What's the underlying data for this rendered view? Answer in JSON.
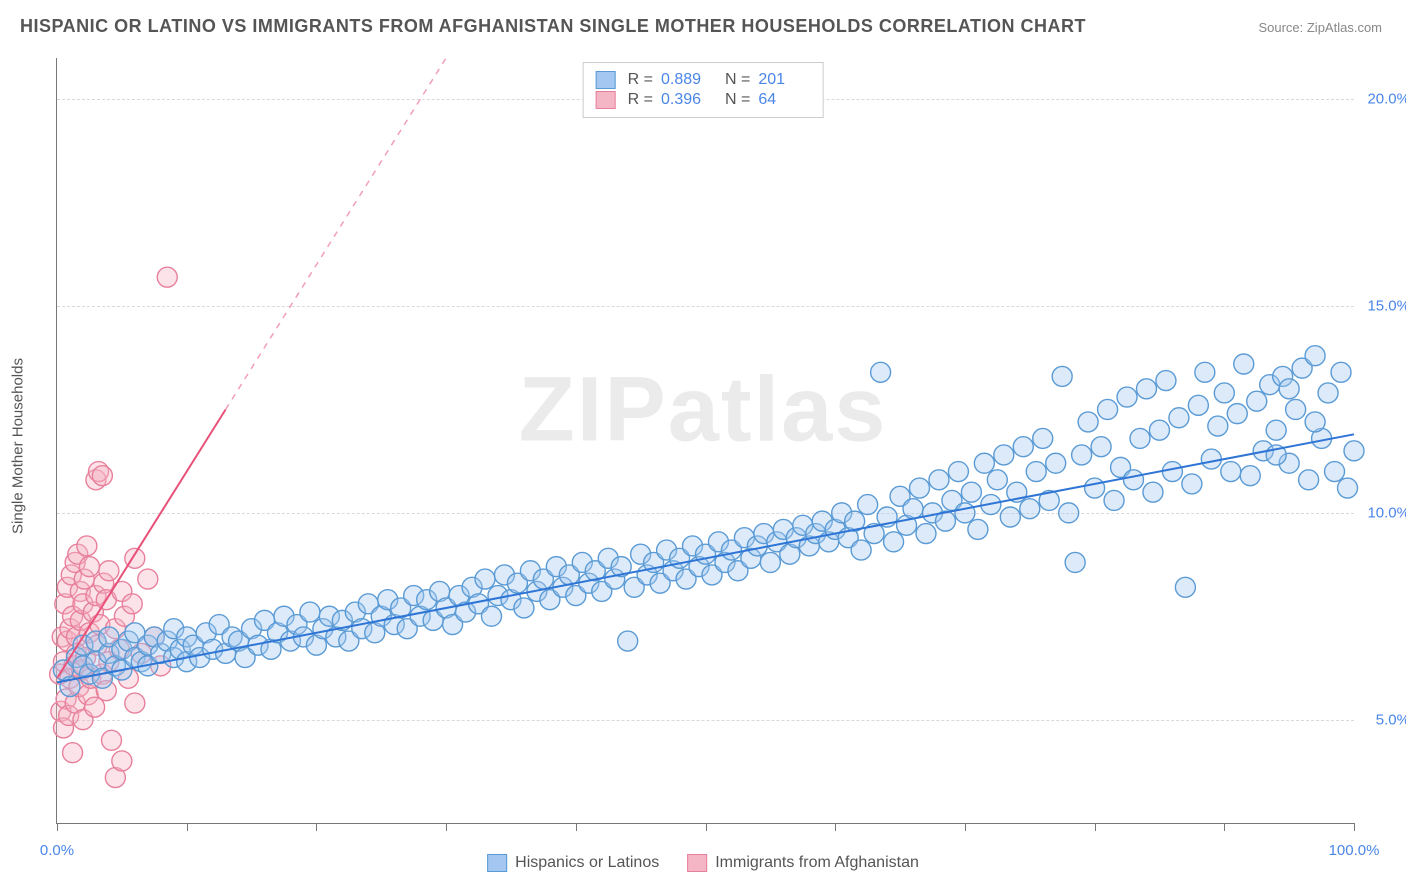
{
  "title": "HISPANIC OR LATINO VS IMMIGRANTS FROM AFGHANISTAN SINGLE MOTHER HOUSEHOLDS CORRELATION CHART",
  "source": "Source: ZipAtlas.com",
  "watermark": "ZIPatlas",
  "ylabel": "Single Mother Households",
  "chart": {
    "type": "scatter",
    "background_color": "#ffffff",
    "grid_color": "#d9d9d9",
    "axis_color": "#777777",
    "tick_label_color": "#4a86e8",
    "xlim": [
      0,
      100
    ],
    "ylim": [
      2.5,
      21
    ],
    "x_ticks": [
      0,
      10,
      20,
      30,
      40,
      50,
      60,
      70,
      80,
      90,
      100
    ],
    "x_tick_labels": {
      "0": "0.0%",
      "100": "100.0%"
    },
    "y_gridlines": [
      5,
      10,
      15,
      20
    ],
    "y_tick_labels": {
      "5": "5.0%",
      "10": "10.0%",
      "15": "15.0%",
      "20": "20.0%"
    },
    "marker_radius": 10,
    "marker_fill_opacity": 0.38,
    "marker_stroke_width": 1.4,
    "trendline_width": 2,
    "trendline_dash_width": 1.5,
    "series": [
      {
        "key": "hispanic",
        "label": "Hispanics or Latinos",
        "color_fill": "#a3c7f0",
        "color_stroke": "#5b9bd5",
        "color_line": "#2e75d6",
        "R": "0.889",
        "N": "201",
        "trendline": {
          "x1": 0,
          "y1": 5.9,
          "x2": 100,
          "y2": 11.9
        },
        "points": [
          [
            0.5,
            6.2
          ],
          [
            1,
            5.8
          ],
          [
            1.5,
            6.5
          ],
          [
            2,
            6.3
          ],
          [
            2,
            6.8
          ],
          [
            2.5,
            6.1
          ],
          [
            3,
            6.4
          ],
          [
            3,
            6.9
          ],
          [
            3.5,
            6.0
          ],
          [
            4,
            6.6
          ],
          [
            4,
            7.0
          ],
          [
            4.5,
            6.3
          ],
          [
            5,
            6.7
          ],
          [
            5,
            6.2
          ],
          [
            5.5,
            6.9
          ],
          [
            6,
            6.5
          ],
          [
            6,
            7.1
          ],
          [
            6.5,
            6.4
          ],
          [
            7,
            6.8
          ],
          [
            7,
            6.3
          ],
          [
            7.5,
            7.0
          ],
          [
            8,
            6.6
          ],
          [
            8.5,
            6.9
          ],
          [
            9,
            6.5
          ],
          [
            9,
            7.2
          ],
          [
            9.5,
            6.7
          ],
          [
            10,
            6.4
          ],
          [
            10,
            7.0
          ],
          [
            10.5,
            6.8
          ],
          [
            11,
            6.5
          ],
          [
            11.5,
            7.1
          ],
          [
            12,
            6.7
          ],
          [
            12.5,
            7.3
          ],
          [
            13,
            6.6
          ],
          [
            13.5,
            7.0
          ],
          [
            14,
            6.9
          ],
          [
            14.5,
            6.5
          ],
          [
            15,
            7.2
          ],
          [
            15.5,
            6.8
          ],
          [
            16,
            7.4
          ],
          [
            16.5,
            6.7
          ],
          [
            17,
            7.1
          ],
          [
            17.5,
            7.5
          ],
          [
            18,
            6.9
          ],
          [
            18.5,
            7.3
          ],
          [
            19,
            7.0
          ],
          [
            19.5,
            7.6
          ],
          [
            20,
            6.8
          ],
          [
            20.5,
            7.2
          ],
          [
            21,
            7.5
          ],
          [
            21.5,
            7.0
          ],
          [
            22,
            7.4
          ],
          [
            22.5,
            6.9
          ],
          [
            23,
            7.6
          ],
          [
            23.5,
            7.2
          ],
          [
            24,
            7.8
          ],
          [
            24.5,
            7.1
          ],
          [
            25,
            7.5
          ],
          [
            25.5,
            7.9
          ],
          [
            26,
            7.3
          ],
          [
            26.5,
            7.7
          ],
          [
            27,
            7.2
          ],
          [
            27.5,
            8.0
          ],
          [
            28,
            7.5
          ],
          [
            28.5,
            7.9
          ],
          [
            29,
            7.4
          ],
          [
            29.5,
            8.1
          ],
          [
            30,
            7.7
          ],
          [
            30.5,
            7.3
          ],
          [
            31,
            8.0
          ],
          [
            31.5,
            7.6
          ],
          [
            32,
            8.2
          ],
          [
            32.5,
            7.8
          ],
          [
            33,
            8.4
          ],
          [
            33.5,
            7.5
          ],
          [
            34,
            8.0
          ],
          [
            34.5,
            8.5
          ],
          [
            35,
            7.9
          ],
          [
            35.5,
            8.3
          ],
          [
            36,
            7.7
          ],
          [
            36.5,
            8.6
          ],
          [
            37,
            8.1
          ],
          [
            37.5,
            8.4
          ],
          [
            38,
            7.9
          ],
          [
            38.5,
            8.7
          ],
          [
            39,
            8.2
          ],
          [
            39.5,
            8.5
          ],
          [
            40,
            8.0
          ],
          [
            40.5,
            8.8
          ],
          [
            41,
            8.3
          ],
          [
            41.5,
            8.6
          ],
          [
            42,
            8.1
          ],
          [
            42.5,
            8.9
          ],
          [
            43,
            8.4
          ],
          [
            43.5,
            8.7
          ],
          [
            44,
            6.9
          ],
          [
            44.5,
            8.2
          ],
          [
            45,
            9.0
          ],
          [
            45.5,
            8.5
          ],
          [
            46,
            8.8
          ],
          [
            46.5,
            8.3
          ],
          [
            47,
            9.1
          ],
          [
            47.5,
            8.6
          ],
          [
            48,
            8.9
          ],
          [
            48.5,
            8.4
          ],
          [
            49,
            9.2
          ],
          [
            49.5,
            8.7
          ],
          [
            50,
            9.0
          ],
          [
            50.5,
            8.5
          ],
          [
            51,
            9.3
          ],
          [
            51.5,
            8.8
          ],
          [
            52,
            9.1
          ],
          [
            52.5,
            8.6
          ],
          [
            53,
            9.4
          ],
          [
            53.5,
            8.9
          ],
          [
            54,
            9.2
          ],
          [
            54.5,
            9.5
          ],
          [
            55,
            8.8
          ],
          [
            55.5,
            9.3
          ],
          [
            56,
            9.6
          ],
          [
            56.5,
            9.0
          ],
          [
            57,
            9.4
          ],
          [
            57.5,
            9.7
          ],
          [
            58,
            9.2
          ],
          [
            58.5,
            9.5
          ],
          [
            59,
            9.8
          ],
          [
            59.5,
            9.3
          ],
          [
            60,
            9.6
          ],
          [
            60.5,
            10.0
          ],
          [
            61,
            9.4
          ],
          [
            61.5,
            9.8
          ],
          [
            62,
            9.1
          ],
          [
            62.5,
            10.2
          ],
          [
            63,
            9.5
          ],
          [
            63.5,
            13.4
          ],
          [
            64,
            9.9
          ],
          [
            64.5,
            9.3
          ],
          [
            65,
            10.4
          ],
          [
            65.5,
            9.7
          ],
          [
            66,
            10.1
          ],
          [
            66.5,
            10.6
          ],
          [
            67,
            9.5
          ],
          [
            67.5,
            10.0
          ],
          [
            68,
            10.8
          ],
          [
            68.5,
            9.8
          ],
          [
            69,
            10.3
          ],
          [
            69.5,
            11.0
          ],
          [
            70,
            10.0
          ],
          [
            70.5,
            10.5
          ],
          [
            71,
            9.6
          ],
          [
            71.5,
            11.2
          ],
          [
            72,
            10.2
          ],
          [
            72.5,
            10.8
          ],
          [
            73,
            11.4
          ],
          [
            73.5,
            9.9
          ],
          [
            74,
            10.5
          ],
          [
            74.5,
            11.6
          ],
          [
            75,
            10.1
          ],
          [
            75.5,
            11.0
          ],
          [
            76,
            11.8
          ],
          [
            76.5,
            10.3
          ],
          [
            77,
            11.2
          ],
          [
            77.5,
            13.3
          ],
          [
            78,
            10.0
          ],
          [
            78.5,
            8.8
          ],
          [
            79,
            11.4
          ],
          [
            79.5,
            12.2
          ],
          [
            80,
            10.6
          ],
          [
            80.5,
            11.6
          ],
          [
            81,
            12.5
          ],
          [
            81.5,
            10.3
          ],
          [
            82,
            11.1
          ],
          [
            82.5,
            12.8
          ],
          [
            83,
            10.8
          ],
          [
            83.5,
            11.8
          ],
          [
            84,
            13.0
          ],
          [
            84.5,
            10.5
          ],
          [
            85,
            12.0
          ],
          [
            85.5,
            13.2
          ],
          [
            86,
            11.0
          ],
          [
            86.5,
            12.3
          ],
          [
            87,
            8.2
          ],
          [
            87.5,
            10.7
          ],
          [
            88,
            12.6
          ],
          [
            88.5,
            13.4
          ],
          [
            89,
            11.3
          ],
          [
            89.5,
            12.1
          ],
          [
            90,
            12.9
          ],
          [
            90.5,
            11.0
          ],
          [
            91,
            12.4
          ],
          [
            91.5,
            13.6
          ],
          [
            92,
            10.9
          ],
          [
            92.5,
            12.7
          ],
          [
            93,
            11.5
          ],
          [
            93.5,
            13.1
          ],
          [
            94,
            12.0
          ],
          [
            94.5,
            13.3
          ],
          [
            95,
            11.2
          ],
          [
            95.5,
            12.5
          ],
          [
            96,
            13.5
          ],
          [
            96.5,
            10.8
          ],
          [
            97,
            13.8
          ],
          [
            97.5,
            11.8
          ],
          [
            98,
            12.9
          ],
          [
            98.5,
            11.0
          ],
          [
            99,
            13.4
          ],
          [
            99.5,
            10.6
          ],
          [
            100,
            11.5
          ],
          [
            97,
            12.2
          ],
          [
            95,
            13.0
          ],
          [
            94,
            11.4
          ]
        ]
      },
      {
        "key": "afghan",
        "label": "Immigrants from Afghanistan",
        "color_fill": "#f4b5c5",
        "color_stroke": "#e8809c",
        "color_line": "#e8517a",
        "R": "0.396",
        "N": "64",
        "trendline": {
          "x1": 0,
          "y1": 6.0,
          "x2": 13,
          "y2": 12.5
        },
        "trendline_dash": {
          "x1": 13,
          "y1": 12.5,
          "x2": 30,
          "y2": 21.0
        },
        "points": [
          [
            0.2,
            6.1
          ],
          [
            0.3,
            5.2
          ],
          [
            0.4,
            7.0
          ],
          [
            0.5,
            6.4
          ],
          [
            0.5,
            4.8
          ],
          [
            0.6,
            7.8
          ],
          [
            0.7,
            5.5
          ],
          [
            0.8,
            6.9
          ],
          [
            0.8,
            8.2
          ],
          [
            0.9,
            5.1
          ],
          [
            1.0,
            7.2
          ],
          [
            1.0,
            6.0
          ],
          [
            1.1,
            8.5
          ],
          [
            1.2,
            4.2
          ],
          [
            1.2,
            7.5
          ],
          [
            1.3,
            6.3
          ],
          [
            1.4,
            8.8
          ],
          [
            1.4,
            5.4
          ],
          [
            1.5,
            7.0
          ],
          [
            1.5,
            6.6
          ],
          [
            1.6,
            9.0
          ],
          [
            1.7,
            5.8
          ],
          [
            1.8,
            7.4
          ],
          [
            1.8,
            8.1
          ],
          [
            1.9,
            6.2
          ],
          [
            2.0,
            7.8
          ],
          [
            2.0,
            5.0
          ],
          [
            2.1,
            8.4
          ],
          [
            2.2,
            6.5
          ],
          [
            2.3,
            9.2
          ],
          [
            2.4,
            5.6
          ],
          [
            2.5,
            7.1
          ],
          [
            2.5,
            8.7
          ],
          [
            2.6,
            6.0
          ],
          [
            2.8,
            7.6
          ],
          [
            2.9,
            5.3
          ],
          [
            3.0,
            8.0
          ],
          [
            3.0,
            10.8
          ],
          [
            3.1,
            6.8
          ],
          [
            3.2,
            11.0
          ],
          [
            3.3,
            7.3
          ],
          [
            3.5,
            6.1
          ],
          [
            3.5,
            10.9
          ],
          [
            3.6,
            8.3
          ],
          [
            3.8,
            5.7
          ],
          [
            3.8,
            7.9
          ],
          [
            4.0,
            6.4
          ],
          [
            4.0,
            8.6
          ],
          [
            4.2,
            4.5
          ],
          [
            4.5,
            7.2
          ],
          [
            4.5,
            3.6
          ],
          [
            4.8,
            6.7
          ],
          [
            5.0,
            8.1
          ],
          [
            5.0,
            4.0
          ],
          [
            5.2,
            7.5
          ],
          [
            5.5,
            6.0
          ],
          [
            5.8,
            7.8
          ],
          [
            6.0,
            5.4
          ],
          [
            6.0,
            8.9
          ],
          [
            6.5,
            6.6
          ],
          [
            7.0,
            8.4
          ],
          [
            7.5,
            7.0
          ],
          [
            8.0,
            6.3
          ],
          [
            8.5,
            15.7
          ]
        ]
      }
    ]
  },
  "legend_top": {
    "R_label": "R =",
    "N_label": "N ="
  },
  "legend_bottom": {}
}
